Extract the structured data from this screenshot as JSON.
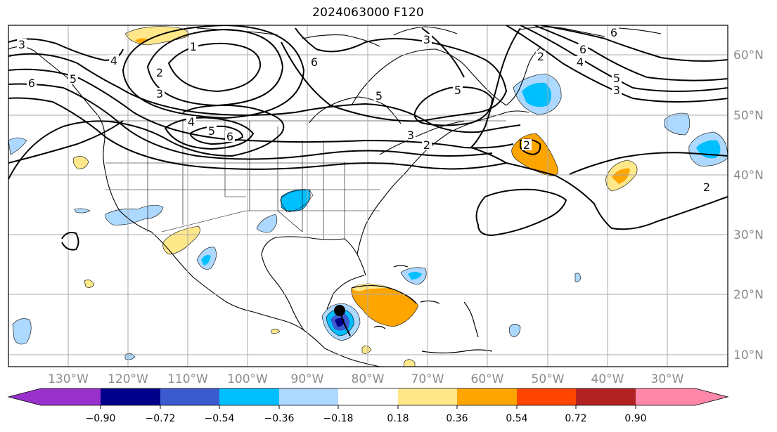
{
  "title": "2024063000 F120",
  "map": {
    "lon_ticks": [
      "130°W",
      "120°W",
      "110°W",
      "100°W",
      "90°W",
      "80°W",
      "70°W",
      "60°W",
      "50°W",
      "40°W",
      "30°W"
    ],
    "lat_ticks": [
      "60°N",
      "50°N",
      "40°N",
      "30°N",
      "20°N",
      "10°N"
    ],
    "contour_labels": [
      "3",
      "4",
      "5",
      "6",
      "1",
      "2",
      "3",
      "4",
      "5",
      "6",
      "6",
      "5",
      "3",
      "2",
      "5",
      "3",
      "2",
      "2",
      "6",
      "4",
      "5",
      "3",
      "6",
      "2"
    ],
    "storm_marker": "tropical-cyclone-center"
  },
  "colorbar": {
    "ticks": [
      "−0.90",
      "−0.72",
      "−0.54",
      "−0.36",
      "−0.18",
      "0.18",
      "0.36",
      "0.54",
      "0.72",
      "0.90"
    ],
    "colors": [
      "#9932cc",
      "#00008b",
      "#3b5bcf",
      "#00bfff",
      "#add8ff",
      "#ffffff",
      "#ffe88a",
      "#ffa500",
      "#ff4500",
      "#b22222",
      "#ff88aa"
    ]
  }
}
